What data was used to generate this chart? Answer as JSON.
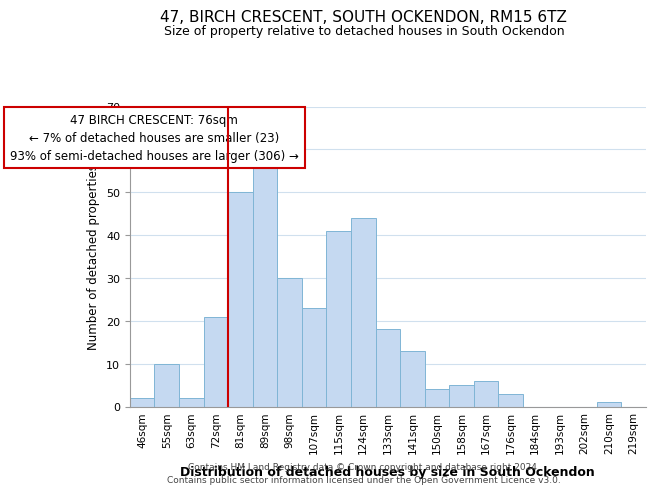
{
  "title": "47, BIRCH CRESCENT, SOUTH OCKENDON, RM15 6TZ",
  "subtitle": "Size of property relative to detached houses in South Ockendon",
  "xlabel": "Distribution of detached houses by size in South Ockendon",
  "ylabel": "Number of detached properties",
  "bar_labels": [
    "46sqm",
    "55sqm",
    "63sqm",
    "72sqm",
    "81sqm",
    "89sqm",
    "98sqm",
    "107sqm",
    "115sqm",
    "124sqm",
    "133sqm",
    "141sqm",
    "150sqm",
    "158sqm",
    "167sqm",
    "176sqm",
    "184sqm",
    "193sqm",
    "202sqm",
    "210sqm",
    "219sqm"
  ],
  "bar_values": [
    2,
    10,
    2,
    21,
    50,
    58,
    30,
    23,
    41,
    44,
    18,
    13,
    4,
    5,
    6,
    3,
    0,
    0,
    0,
    1,
    0
  ],
  "bar_color": "#c5d9f1",
  "bar_edge_color": "#7fb5d5",
  "marker_line_index": 4,
  "marker_line_color": "#cc0000",
  "annotation_line1": "47 BIRCH CRESCENT: 76sqm",
  "annotation_line2": "← 7% of detached houses are smaller (23)",
  "annotation_line3": "93% of semi-detached houses are larger (306) →",
  "ylim": [
    0,
    70
  ],
  "yticks": [
    0,
    10,
    20,
    30,
    40,
    50,
    60,
    70
  ],
  "footer_line1": "Contains HM Land Registry data © Crown copyright and database right 2024.",
  "footer_line2": "Contains public sector information licensed under the Open Government Licence v3.0.",
  "background_color": "#ffffff",
  "title_fontsize": 11,
  "subtitle_fontsize": 9,
  "annotation_box_facecolor": "#ffffff",
  "annotation_box_edgecolor": "#cc0000",
  "grid_color": "#d0e0ee"
}
